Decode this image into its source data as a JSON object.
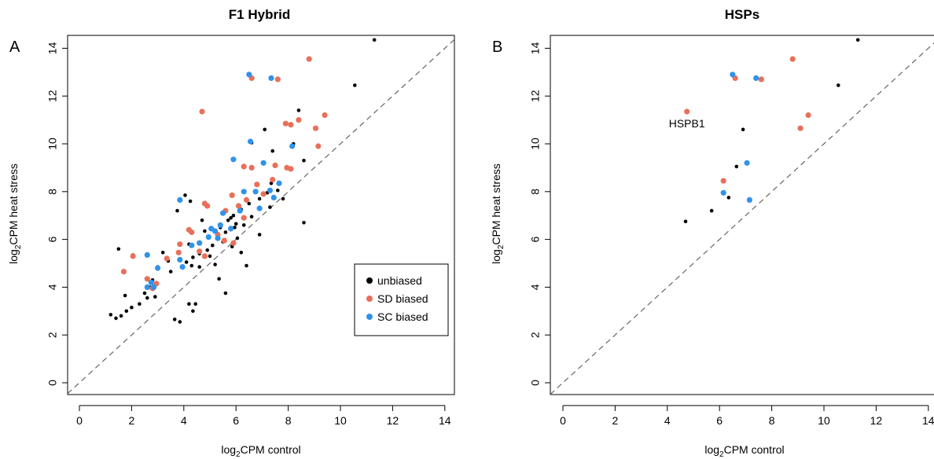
{
  "colors": {
    "unbiased": "#000000",
    "sd_biased": "#e8705a",
    "sc_biased": "#2f93ea",
    "axis": "#000000",
    "diagonal": "#666666"
  },
  "chart_data": [
    {
      "type": "scatter",
      "panel_label": "A",
      "title": "F1 Hybrid",
      "xlabel": {
        "prefix": "log",
        "sub": "2",
        "suffix": "CPM control"
      },
      "ylabel": {
        "prefix": "log",
        "sub": "2",
        "suffix": "CPM heat stress"
      },
      "xlim": [
        0,
        14
      ],
      "ylim": [
        0,
        14
      ],
      "xticks": [
        "0",
        "2",
        "4",
        "6",
        "8",
        "10",
        "12",
        "14"
      ],
      "yticks": [
        "0",
        "2",
        "4",
        "6",
        "8",
        "10",
        "12",
        "14"
      ],
      "reference_line": "y = x (dashed)",
      "legend": {
        "position": "bottom-right",
        "entries": [
          "unbiased",
          "SD biased",
          "SC biased"
        ]
      },
      "series": [
        {
          "name": "unbiased",
          "color_key": "unbiased",
          "points": [
            [
              11.3,
              14.35
            ],
            [
              10.55,
              12.45
            ],
            [
              8.4,
              11.4
            ],
            [
              7.1,
              10.6
            ],
            [
              6.6,
              10.05
            ],
            [
              8.2,
              10
            ],
            [
              8.6,
              9.3
            ],
            [
              7.35,
              8.35
            ],
            [
              7.6,
              8.05
            ],
            [
              7.2,
              7.95
            ],
            [
              6.9,
              7.7
            ],
            [
              6.5,
              7.5
            ],
            [
              6.2,
              7.25
            ],
            [
              5.9,
              7
            ],
            [
              5.7,
              6.8
            ],
            [
              6.3,
              6.6
            ],
            [
              5.95,
              6.5
            ],
            [
              5.6,
              6.3
            ],
            [
              5.3,
              6.15
            ],
            [
              5.5,
              5.9
            ],
            [
              5.1,
              5.75
            ],
            [
              4.9,
              5.55
            ],
            [
              4.6,
              5.4
            ],
            [
              4.35,
              5.25
            ],
            [
              4.1,
              5.05
            ],
            [
              4.3,
              4.9
            ],
            [
              4.6,
              4.85
            ],
            [
              5.2,
              4.95
            ],
            [
              5.85,
              5.7
            ],
            [
              6.6,
              6.95
            ],
            [
              7.3,
              7.35
            ],
            [
              7.8,
              7.7
            ],
            [
              4.05,
              7.85
            ],
            [
              4.25,
              7.6
            ],
            [
              3.75,
              7.2
            ],
            [
              4.8,
              6.35
            ],
            [
              5.4,
              6.5
            ],
            [
              6.05,
              6.05
            ],
            [
              3.4,
              5.1
            ],
            [
              3.2,
              5.45
            ],
            [
              3.0,
              4.85
            ],
            [
              3.5,
              4.65
            ],
            [
              2.8,
              4.3
            ],
            [
              2.7,
              4
            ],
            [
              2.5,
              3.75
            ],
            [
              2.6,
              3.55
            ],
            [
              2.9,
              3.6
            ],
            [
              2.3,
              3.3
            ],
            [
              2.0,
              3.15
            ],
            [
              1.8,
              3
            ],
            [
              1.6,
              2.8
            ],
            [
              1.4,
              2.7
            ],
            [
              1.2,
              2.85
            ],
            [
              1.75,
              3.65
            ],
            [
              2.05,
              5.35
            ],
            [
              1.5,
              5.6
            ],
            [
              4.2,
              3.3
            ],
            [
              4.45,
              3.3
            ],
            [
              4.35,
              3
            ],
            [
              3.85,
              2.55
            ],
            [
              3.65,
              2.65
            ],
            [
              5.35,
              4.35
            ],
            [
              5.6,
              3.75
            ],
            [
              6.2,
              5.45
            ],
            [
              6.4,
              4.9
            ],
            [
              8.6,
              6.7
            ],
            [
              7.4,
              9.7
            ],
            [
              5.0,
              5.3
            ],
            [
              4.2,
              5.8
            ],
            [
              6.9,
              6.2
            ],
            [
              5.8,
              6.9
            ],
            [
              6.0,
              6.65
            ],
            [
              4.7,
              6.8
            ]
          ]
        },
        {
          "name": "SD biased",
          "color_key": "sd_biased",
          "points": [
            [
              8.8,
              13.55
            ],
            [
              7.6,
              12.7
            ],
            [
              6.6,
              12.75
            ],
            [
              4.7,
              11.35
            ],
            [
              9.4,
              11.2
            ],
            [
              8.4,
              11
            ],
            [
              7.9,
              10.85
            ],
            [
              8.1,
              10.8
            ],
            [
              9.05,
              10.65
            ],
            [
              9.15,
              9.9
            ],
            [
              7.5,
              9.1
            ],
            [
              7.95,
              9
            ],
            [
              8.1,
              8.95
            ],
            [
              6.3,
              9.05
            ],
            [
              6.6,
              9
            ],
            [
              7.4,
              8.5
            ],
            [
              6.8,
              8.3
            ],
            [
              5.85,
              7.85
            ],
            [
              6.4,
              7.65
            ],
            [
              7.05,
              7.9
            ],
            [
              6.1,
              7.4
            ],
            [
              5.6,
              7.2
            ],
            [
              6.3,
              6.9
            ],
            [
              4.9,
              7.4
            ],
            [
              4.8,
              7.5
            ],
            [
              4.2,
              6.4
            ],
            [
              4.3,
              6.3
            ],
            [
              5.3,
              6.2
            ],
            [
              5.55,
              5.95
            ],
            [
              5.9,
              5.85
            ],
            [
              4.8,
              5.3
            ],
            [
              4.6,
              5.5
            ],
            [
              3.8,
              5.45
            ],
            [
              3.85,
              5.8
            ],
            [
              3.35,
              5.2
            ],
            [
              1.7,
              4.65
            ],
            [
              2.05,
              5.3
            ],
            [
              2.6,
              4.35
            ],
            [
              2.95,
              4.15
            ],
            [
              2.8,
              3.95
            ]
          ]
        },
        {
          "name": "SC biased",
          "color_key": "sc_biased",
          "points": [
            [
              6.5,
              12.9
            ],
            [
              7.35,
              12.75
            ],
            [
              6.55,
              10.1
            ],
            [
              8.15,
              9.9
            ],
            [
              5.9,
              9.35
            ],
            [
              7.05,
              9.2
            ],
            [
              7.65,
              8.35
            ],
            [
              6.3,
              8
            ],
            [
              6.75,
              8
            ],
            [
              7.3,
              8.05
            ],
            [
              7.45,
              7.75
            ],
            [
              6.9,
              7.3
            ],
            [
              6.15,
              7.2
            ],
            [
              3.85,
              7.65
            ],
            [
              5.5,
              7.1
            ],
            [
              5.8,
              6.45
            ],
            [
              5.4,
              6.6
            ],
            [
              5.2,
              6.35
            ],
            [
              5.3,
              6.05
            ],
            [
              4.95,
              6.1
            ],
            [
              5.05,
              6.45
            ],
            [
              4.6,
              5.85
            ],
            [
              4.3,
              5.75
            ],
            [
              3.85,
              5.15
            ],
            [
              3.95,
              4.85
            ],
            [
              2.6,
              5.35
            ],
            [
              3.0,
              4.8
            ],
            [
              2.6,
              4
            ],
            [
              2.75,
              4.2
            ],
            [
              2.85,
              4
            ]
          ]
        }
      ]
    },
    {
      "type": "scatter",
      "panel_label": "B",
      "title": "HSPs",
      "xlabel": {
        "prefix": "log",
        "sub": "2",
        "suffix": "CPM control"
      },
      "ylabel": {
        "prefix": "log",
        "sub": "2",
        "suffix": "CPM heat stress"
      },
      "xlim": [
        0,
        14
      ],
      "ylim": [
        0,
        14
      ],
      "xticks": [
        "0",
        "2",
        "4",
        "6",
        "8",
        "10",
        "12",
        "14"
      ],
      "yticks": [
        "0",
        "2",
        "4",
        "6",
        "8",
        "10",
        "12",
        "14"
      ],
      "reference_line": "y = x (dashed)",
      "annotations": [
        {
          "text": "HSPB1",
          "x": 4.75,
          "y": 10.85
        }
      ],
      "series": [
        {
          "name": "unbiased",
          "color_key": "unbiased",
          "points": [
            [
              11.3,
              14.35
            ],
            [
              10.55,
              12.45
            ],
            [
              6.9,
              10.6
            ],
            [
              6.65,
              9.05
            ],
            [
              6.35,
              7.75
            ],
            [
              5.7,
              7.2
            ],
            [
              4.7,
              6.75
            ]
          ]
        },
        {
          "name": "SD biased",
          "color_key": "sd_biased",
          "points": [
            [
              8.8,
              13.55
            ],
            [
              7.6,
              12.7
            ],
            [
              6.6,
              12.75
            ],
            [
              4.75,
              11.35
            ],
            [
              9.4,
              11.2
            ],
            [
              9.1,
              10.65
            ],
            [
              6.15,
              8.45
            ]
          ]
        },
        {
          "name": "SC biased",
          "color_key": "sc_biased",
          "points": [
            [
              6.5,
              12.9
            ],
            [
              7.4,
              12.75
            ],
            [
              7.05,
              9.2
            ],
            [
              6.15,
              7.95
            ],
            [
              7.15,
              7.65
            ]
          ]
        }
      ]
    }
  ]
}
